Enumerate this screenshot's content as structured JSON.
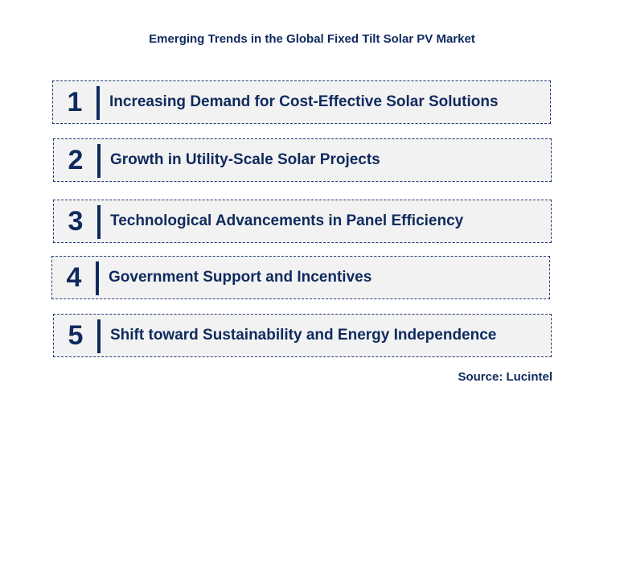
{
  "title": "Emerging Trends in the Global Fixed Tilt Solar PV Market",
  "trends": [
    {
      "number": "1",
      "label": "Increasing Demand for Cost-Effective Solar Solutions"
    },
    {
      "number": "2",
      "label": "Growth in Utility-Scale Solar Projects"
    },
    {
      "number": "3",
      "label": "Technological Advancements in Panel Efficiency"
    },
    {
      "number": "4",
      "label": "Government Support and Incentives"
    },
    {
      "number": "5",
      "label": "Shift toward Sustainability and Energy Independence"
    }
  ],
  "source": "Source: Lucintel",
  "colors": {
    "text": "#0f2a5e",
    "box_fill": "#f2f2f2",
    "border": "#1f3a75"
  }
}
